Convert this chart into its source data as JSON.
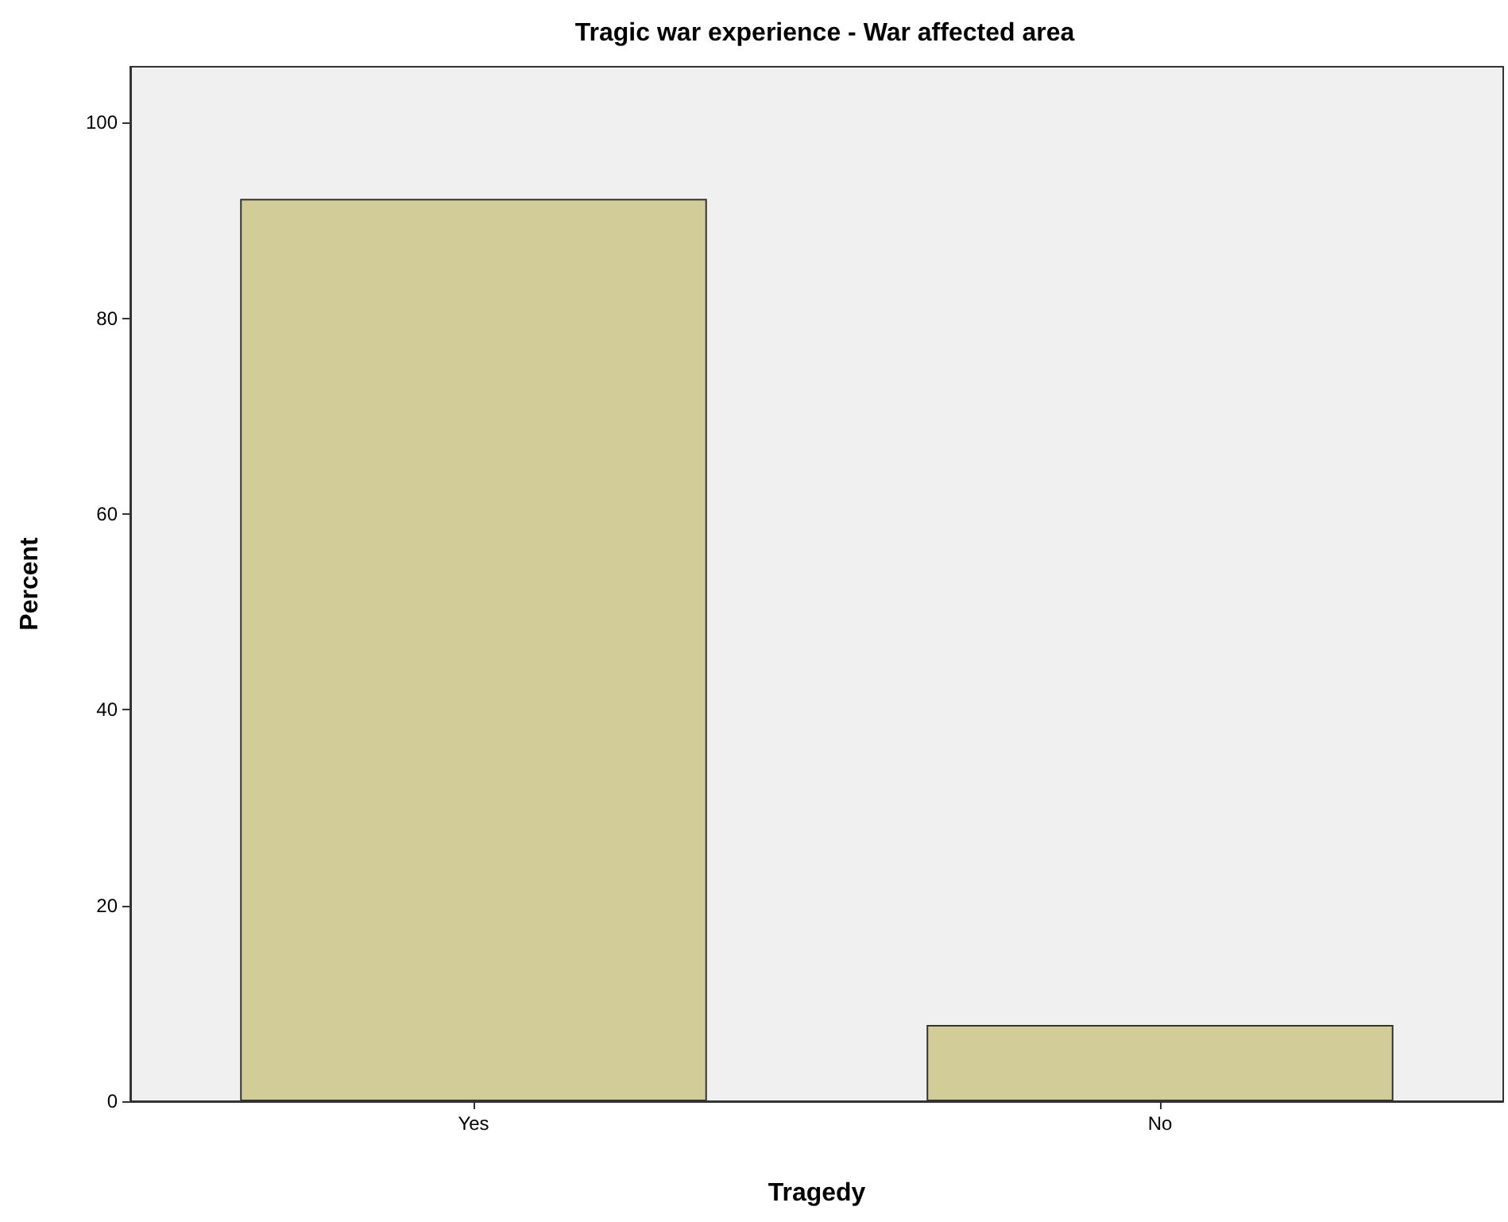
{
  "chart_data": {
    "type": "bar",
    "title": "Tragic war experience - War affected area",
    "xlabel": "Tragedy",
    "ylabel": "Percent",
    "categories": [
      "Yes",
      "No"
    ],
    "values": [
      92.2,
      7.8
    ],
    "color": "#d2cd98",
    "ylim": [
      0,
      105.7
    ],
    "yticks": [
      0,
      20,
      40,
      60,
      80,
      100
    ],
    "grid": false
  }
}
